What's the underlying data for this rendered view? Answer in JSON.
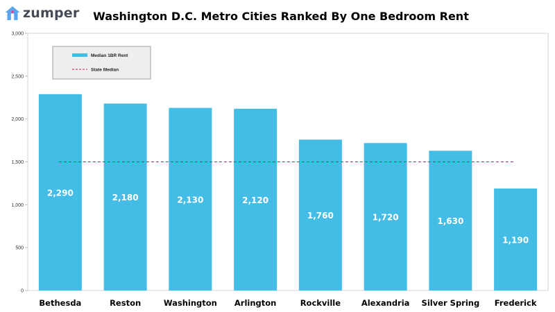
{
  "brand": {
    "name": "zumper",
    "icon": "house-logo-icon",
    "colors": {
      "house": "#5ba4f0",
      "accent": "#e84393"
    }
  },
  "chart_data": {
    "type": "bar",
    "title": "Washington D.C. Metro Cities Ranked By One Bedroom Rent",
    "xlabel": "",
    "ylabel": "",
    "categories": [
      "Bethesda",
      "Reston",
      "Washington",
      "Arlington",
      "Rockville",
      "Alexandria",
      "Silver Spring",
      "Frederick"
    ],
    "series": [
      {
        "name": "Median 1BR Rent",
        "values": [
          2290,
          2180,
          2130,
          2120,
          1760,
          1720,
          1630,
          1190
        ],
        "color": "#44bde6"
      }
    ],
    "data_labels": [
      "2,290",
      "2,180",
      "2,130",
      "2,120",
      "1,760",
      "1,720",
      "1,630",
      "1,190"
    ],
    "reference_line": {
      "name": "State Median",
      "value": 1500,
      "color": "#c2185b",
      "style": "dashed"
    },
    "ylim": [
      0,
      3000
    ],
    "yticks": [
      0,
      500,
      1000,
      1500,
      2000,
      2500,
      3000
    ],
    "ytick_labels": [
      "0",
      "500",
      "1,000",
      "1,500",
      "2,000",
      "2,500",
      "3,000"
    ],
    "grid": false,
    "legend": {
      "placement": "top-left",
      "background": "#eeeeee"
    }
  }
}
